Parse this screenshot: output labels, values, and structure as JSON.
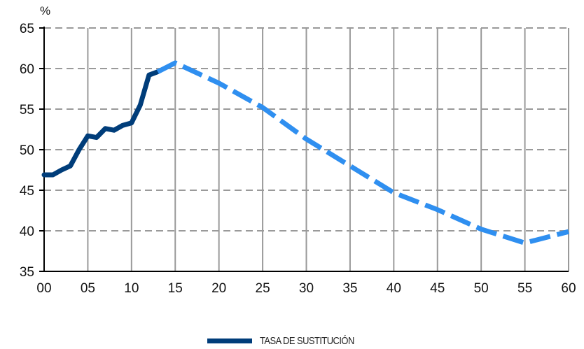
{
  "chart_data": {
    "type": "line",
    "ylabel": "%",
    "ylim": [
      35,
      65
    ],
    "xlim": [
      0,
      60
    ],
    "y_ticks": [
      "35",
      "40",
      "45",
      "50",
      "55",
      "60",
      "65"
    ],
    "x_ticks": [
      "00",
      "05",
      "10",
      "15",
      "20",
      "25",
      "30",
      "35",
      "40",
      "45",
      "50",
      "55",
      "60"
    ],
    "grid": true,
    "legend_position": "bottom-center",
    "series": [
      {
        "name": "TASA DE SUSTITUCIÓN",
        "style": "solid",
        "color": "#003d7a",
        "x": [
          0,
          1,
          2,
          3,
          4,
          5,
          6,
          7,
          8,
          9,
          10,
          11,
          12,
          13
        ],
        "y": [
          46.9,
          46.9,
          47.5,
          48.0,
          50.0,
          51.7,
          51.5,
          52.6,
          52.4,
          53.0,
          53.3,
          55.5,
          59.2,
          59.6
        ]
      },
      {
        "name": "",
        "style": "dashed",
        "color": "#2f8ff0",
        "x": [
          13,
          15,
          20,
          25,
          30,
          35,
          40,
          45,
          50,
          55,
          60
        ],
        "y": [
          59.6,
          60.7,
          58.2,
          55.2,
          51.3,
          48.0,
          44.7,
          42.6,
          40.2,
          38.5,
          39.9
        ]
      }
    ],
    "legend": [
      "TASA DE SUSTITUCIÓN"
    ]
  }
}
